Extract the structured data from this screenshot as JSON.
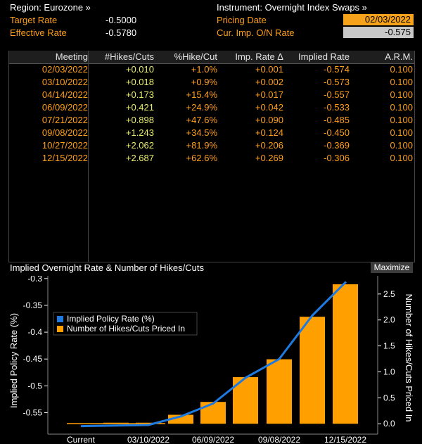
{
  "header": {
    "region_label": "Region: Eurozone »",
    "target_rate_label": "Target Rate",
    "target_rate_value": "-0.5000",
    "effective_rate_label": "Effective Rate",
    "effective_rate_value": "-0.5780",
    "instrument_label": "Instrument: Overnight Index Swaps »",
    "pricing_date_label": "Pricing Date",
    "pricing_date_value": "02/03/2022",
    "cur_imp_label": "Cur. Imp. O/N Rate",
    "cur_imp_value": "-0.575"
  },
  "table": {
    "columns": [
      "Meeting",
      "#Hikes/Cuts",
      "%Hike/Cut",
      "Imp. Rate Δ",
      "Implied Rate",
      "A.R.M."
    ],
    "rows": [
      [
        "02/03/2022",
        "+0.010",
        "+1.0%",
        "+0.001",
        "-0.574",
        "0.100"
      ],
      [
        "03/10/2022",
        "+0.018",
        "+0.9%",
        "+0.002",
        "-0.573",
        "0.100"
      ],
      [
        "04/14/2022",
        "+0.173",
        "+15.4%",
        "+0.017",
        "-0.557",
        "0.100"
      ],
      [
        "06/09/2022",
        "+0.421",
        "+24.9%",
        "+0.042",
        "-0.533",
        "0.100"
      ],
      [
        "07/21/2022",
        "+0.898",
        "+47.6%",
        "+0.090",
        "-0.485",
        "0.100"
      ],
      [
        "09/08/2022",
        "+1.243",
        "+34.5%",
        "+0.124",
        "-0.450",
        "0.100"
      ],
      [
        "10/27/2022",
        "+2.062",
        "+81.9%",
        "+0.206",
        "-0.369",
        "0.100"
      ],
      [
        "12/15/2022",
        "+2.687",
        "+62.6%",
        "+0.269",
        "-0.306",
        "0.100"
      ]
    ]
  },
  "chart_panel": {
    "title": "Implied Overnight Rate & Number of Hikes/Cuts",
    "maximize_label": "Maximize"
  },
  "chart_data": {
    "type": "bar",
    "categories": [
      "Current",
      "02/03/2022",
      "03/10/2022",
      "04/14/2022",
      "06/09/2022",
      "07/21/2022",
      "09/08/2022",
      "10/27/2022",
      "12/15/2022"
    ],
    "x_tick_labels": [
      "Current",
      "03/10/2022",
      "06/09/2022",
      "09/08/2022",
      "12/15/2022"
    ],
    "series": [
      {
        "name": "Implied Policy Rate (%)",
        "type": "line",
        "axis": "left",
        "color": "#1f7ae0",
        "values": [
          -0.575,
          -0.574,
          -0.573,
          -0.557,
          -0.533,
          -0.485,
          -0.45,
          -0.369,
          -0.306
        ]
      },
      {
        "name": "Number of Hikes/Cuts Priced In",
        "type": "bar",
        "axis": "right",
        "color": "#ffa000",
        "values": [
          0.0,
          0.01,
          0.018,
          0.173,
          0.421,
          0.898,
          1.243,
          2.062,
          2.687
        ]
      }
    ],
    "ylabel": "Implied Policy Rate (%)",
    "y2label": "Number of Hikes/Cuts Priced In",
    "ylim": [
      -0.59,
      -0.295
    ],
    "yticks": [
      "-0.3",
      "-0.35",
      "-0.4",
      "-0.45",
      "-0.5",
      "-0.55"
    ],
    "y2lim": [
      -0.2,
      2.85
    ],
    "y2ticks": [
      "0.0",
      "0.5",
      "1.0",
      "1.5",
      "2.0",
      "2.5"
    ],
    "legend_position": "top-left",
    "grid": false
  }
}
